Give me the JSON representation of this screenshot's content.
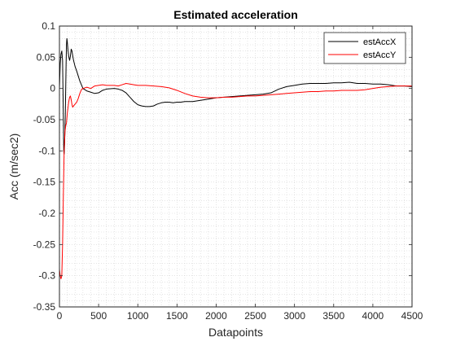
{
  "chart_data": {
    "type": "line",
    "title": "Estimated acceleration",
    "xlabel": "Datapoints",
    "ylabel": "Acc (m/sec2)",
    "xlim": [
      0,
      4500
    ],
    "ylim": [
      -0.35,
      0.1
    ],
    "xticks": [
      0,
      500,
      1000,
      1500,
      2000,
      2500,
      3000,
      3500,
      4000,
      4500
    ],
    "yticks": [
      -0.35,
      -0.3,
      -0.25,
      -0.2,
      -0.15,
      -0.1,
      -0.05,
      0,
      0.05,
      0.1
    ],
    "xtick_labels": [
      "0",
      "500",
      "1000",
      "1500",
      "2000",
      "2500",
      "3000",
      "3500",
      "4000",
      "4500"
    ],
    "ytick_labels": [
      "-0.35",
      "-0.3",
      "-0.25",
      "-0.2",
      "-0.15",
      "-0.1",
      "-0.05",
      "0",
      "0.05",
      "0.1"
    ],
    "grid": "minor-dotted",
    "legend_position": "top-right",
    "series": [
      {
        "name": "estAccX",
        "color": "#000000",
        "points": [
          [
            0,
            0.0
          ],
          [
            10,
            0.04
          ],
          [
            20,
            0.055
          ],
          [
            30,
            0.06
          ],
          [
            40,
            0.045
          ],
          [
            45,
            0.0
          ],
          [
            50,
            -0.05
          ],
          [
            55,
            -0.1
          ],
          [
            60,
            -0.105
          ],
          [
            65,
            -0.09
          ],
          [
            70,
            -0.07
          ],
          [
            75,
            -0.04
          ],
          [
            80,
            0.0
          ],
          [
            85,
            0.04
          ],
          [
            90,
            0.07
          ],
          [
            95,
            0.08
          ],
          [
            100,
            0.075
          ],
          [
            110,
            0.06
          ],
          [
            120,
            0.05
          ],
          [
            130,
            0.045
          ],
          [
            140,
            0.052
          ],
          [
            150,
            0.063
          ],
          [
            160,
            0.06
          ],
          [
            170,
            0.052
          ],
          [
            180,
            0.045
          ],
          [
            200,
            0.035
          ],
          [
            220,
            0.028
          ],
          [
            240,
            0.02
          ],
          [
            260,
            0.012
          ],
          [
            280,
            0.006
          ],
          [
            300,
            0.0
          ],
          [
            350,
            -0.004
          ],
          [
            400,
            -0.006
          ],
          [
            450,
            -0.008
          ],
          [
            500,
            -0.007
          ],
          [
            550,
            -0.003
          ],
          [
            600,
            -0.001
          ],
          [
            650,
            -0.0005
          ],
          [
            700,
            0.0
          ],
          [
            750,
            -0.001
          ],
          [
            800,
            -0.003
          ],
          [
            850,
            -0.007
          ],
          [
            900,
            -0.014
          ],
          [
            950,
            -0.021
          ],
          [
            1000,
            -0.026
          ],
          [
            1050,
            -0.028
          ],
          [
            1100,
            -0.029
          ],
          [
            1150,
            -0.029
          ],
          [
            1200,
            -0.028
          ],
          [
            1250,
            -0.025
          ],
          [
            1300,
            -0.023
          ],
          [
            1350,
            -0.022
          ],
          [
            1400,
            -0.022
          ],
          [
            1450,
            -0.023
          ],
          [
            1500,
            -0.022
          ],
          [
            1550,
            -0.022
          ],
          [
            1600,
            -0.021
          ],
          [
            1700,
            -0.021
          ],
          [
            1800,
            -0.019
          ],
          [
            1900,
            -0.017
          ],
          [
            2000,
            -0.015
          ],
          [
            2100,
            -0.014
          ],
          [
            2200,
            -0.013
          ],
          [
            2300,
            -0.012
          ],
          [
            2400,
            -0.011
          ],
          [
            2500,
            -0.01
          ],
          [
            2600,
            -0.009
          ],
          [
            2700,
            -0.007
          ],
          [
            2800,
            -0.001
          ],
          [
            2900,
            0.003
          ],
          [
            3000,
            0.005
          ],
          [
            3100,
            0.007
          ],
          [
            3200,
            0.008
          ],
          [
            3300,
            0.008
          ],
          [
            3400,
            0.008
          ],
          [
            3500,
            0.009
          ],
          [
            3600,
            0.009
          ],
          [
            3700,
            0.01
          ],
          [
            3800,
            0.008
          ],
          [
            3900,
            0.008
          ],
          [
            4000,
            0.007
          ],
          [
            4100,
            0.007
          ],
          [
            4200,
            0.006
          ],
          [
            4300,
            0.004
          ],
          [
            4400,
            0.004
          ],
          [
            4500,
            0.003
          ]
        ]
      },
      {
        "name": "estAccY",
        "color": "#ff0000",
        "points": [
          [
            0,
            -0.29
          ],
          [
            10,
            -0.3
          ],
          [
            20,
            -0.305
          ],
          [
            30,
            -0.3
          ],
          [
            40,
            -0.25
          ],
          [
            50,
            -0.17
          ],
          [
            60,
            -0.1
          ],
          [
            70,
            -0.07
          ],
          [
            80,
            -0.06
          ],
          [
            90,
            -0.055
          ],
          [
            100,
            -0.04
          ],
          [
            110,
            -0.03
          ],
          [
            120,
            -0.02
          ],
          [
            130,
            -0.014
          ],
          [
            140,
            -0.012
          ],
          [
            150,
            -0.018
          ],
          [
            160,
            -0.026
          ],
          [
            170,
            -0.03
          ],
          [
            180,
            -0.028
          ],
          [
            200,
            -0.025
          ],
          [
            220,
            -0.022
          ],
          [
            240,
            -0.016
          ],
          [
            260,
            -0.008
          ],
          [
            280,
            -0.002
          ],
          [
            300,
            0.0
          ],
          [
            350,
            0.002
          ],
          [
            400,
            0.0
          ],
          [
            450,
            0.004
          ],
          [
            500,
            0.005
          ],
          [
            550,
            0.006
          ],
          [
            600,
            0.005
          ],
          [
            650,
            0.005
          ],
          [
            700,
            0.005
          ],
          [
            750,
            0.004
          ],
          [
            800,
            0.006
          ],
          [
            850,
            0.008
          ],
          [
            900,
            0.007
          ],
          [
            950,
            0.006
          ],
          [
            1000,
            0.005
          ],
          [
            1100,
            0.005
          ],
          [
            1200,
            0.004
          ],
          [
            1300,
            0.003
          ],
          [
            1400,
            0.001
          ],
          [
            1500,
            -0.003
          ],
          [
            1600,
            -0.008
          ],
          [
            1700,
            -0.012
          ],
          [
            1800,
            -0.014
          ],
          [
            1900,
            -0.015
          ],
          [
            2000,
            -0.015
          ],
          [
            2100,
            -0.014
          ],
          [
            2200,
            -0.014
          ],
          [
            2300,
            -0.013
          ],
          [
            2400,
            -0.012
          ],
          [
            2500,
            -0.012
          ],
          [
            2600,
            -0.011
          ],
          [
            2700,
            -0.01
          ],
          [
            2800,
            -0.009
          ],
          [
            2900,
            -0.008
          ],
          [
            3000,
            -0.007
          ],
          [
            3100,
            -0.006
          ],
          [
            3200,
            -0.005
          ],
          [
            3300,
            -0.005
          ],
          [
            3400,
            -0.004
          ],
          [
            3500,
            -0.004
          ],
          [
            3600,
            -0.003
          ],
          [
            3700,
            -0.003
          ],
          [
            3800,
            -0.003
          ],
          [
            3900,
            -0.002
          ],
          [
            4000,
            0.0
          ],
          [
            4100,
            0.002
          ],
          [
            4200,
            0.003
          ],
          [
            4300,
            0.004
          ],
          [
            4400,
            0.004
          ],
          [
            4500,
            0.004
          ]
        ]
      }
    ]
  }
}
